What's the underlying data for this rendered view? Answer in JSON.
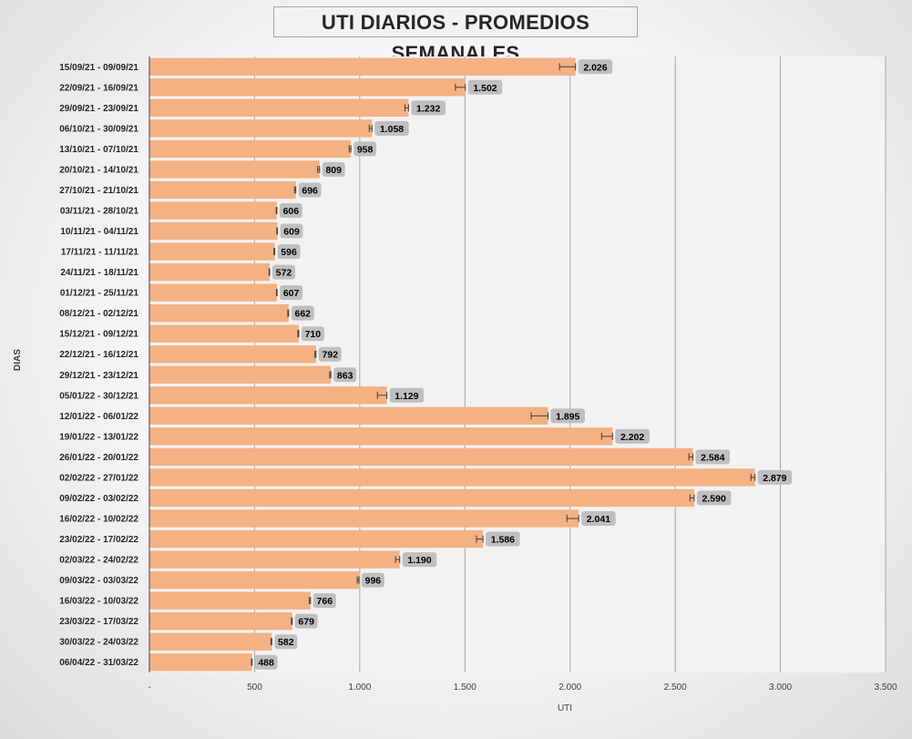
{
  "chart_data": {
    "type": "bar",
    "orientation": "horizontal",
    "title": "UTI DIARIOS - PROMEDIOS SEMANALES",
    "xlabel": "UTI",
    "ylabel": "DIAS",
    "xlim": [
      0,
      3500
    ],
    "x_ticks": [
      0,
      500,
      1000,
      1500,
      2000,
      2500,
      3000,
      3500
    ],
    "x_tick_labels": [
      "-",
      "500",
      "1.000",
      "1.500",
      "2.000",
      "2.500",
      "3.000",
      "3.500"
    ],
    "grid": "vertical",
    "error_bars": true,
    "bar_color": "#f4b183",
    "label_bg_color": "#bfbfbf",
    "categories": [
      "15/09/21 - 09/09/21",
      "22/09/21 - 16/09/21",
      "29/09/21 - 23/09/21",
      "06/10/21 - 30/09/21",
      "13/10/21 - 07/10/21",
      "20/10/21 - 14/10/21",
      "27/10/21 - 21/10/21",
      "03/11/21 - 28/10/21",
      "10/11/21 - 04/11/21",
      "17/11/21 - 11/11/21",
      "24/11/21 - 18/11/21",
      "01/12/21 - 25/11/21",
      "08/12/21 - 02/12/21",
      "15/12/21 - 09/12/21",
      "22/12/21 - 16/12/21",
      "29/12/21 - 23/12/21",
      "05/01/22 - 30/12/21",
      "12/01/22 - 06/01/22",
      "19/01/22 - 13/01/22",
      "26/01/22 - 20/01/22",
      "02/02/22 - 27/01/22",
      "09/02/22 - 03/02/22",
      "16/02/22 - 10/02/22",
      "23/02/22 - 17/02/22",
      "02/03/22 - 24/02/22",
      "09/03/22 - 03/03/22",
      "16/03/22 - 10/03/22",
      "23/03/22 - 17/03/22",
      "30/03/22 - 24/03/22",
      "06/04/22 - 31/03/22"
    ],
    "values": [
      2026,
      1502,
      1232,
      1058,
      958,
      809,
      696,
      606,
      609,
      596,
      572,
      607,
      662,
      710,
      792,
      863,
      1129,
      1895,
      2202,
      2584,
      2879,
      2590,
      2041,
      1586,
      1190,
      996,
      766,
      679,
      582,
      488
    ],
    "value_labels": [
      "2.026",
      "1.502",
      "1.232",
      "1.058",
      "958",
      "809",
      "696",
      "606",
      "609",
      "596",
      "572",
      "607",
      "662",
      "710",
      "792",
      "863",
      "1.129",
      "1.895",
      "2.202",
      "2.584",
      "2.879",
      "2.590",
      "2.041",
      "1.586",
      "1.190",
      "996",
      "766",
      "679",
      "582",
      "488"
    ],
    "error_low": [
      1950,
      1455,
      1215,
      1045,
      950,
      800,
      690,
      603,
      606,
      592,
      569,
      604,
      658,
      706,
      787,
      857,
      1084,
      1815,
      2150,
      2565,
      2860,
      2570,
      1985,
      1555,
      1170,
      988,
      760,
      675,
      578,
      485
    ],
    "error_high": [
      2026,
      1502,
      1232,
      1058,
      958,
      809,
      696,
      606,
      609,
      596,
      572,
      607,
      662,
      710,
      792,
      863,
      1129,
      1895,
      2202,
      2584,
      2879,
      2590,
      2041,
      1586,
      1190,
      996,
      766,
      679,
      582,
      488
    ]
  }
}
